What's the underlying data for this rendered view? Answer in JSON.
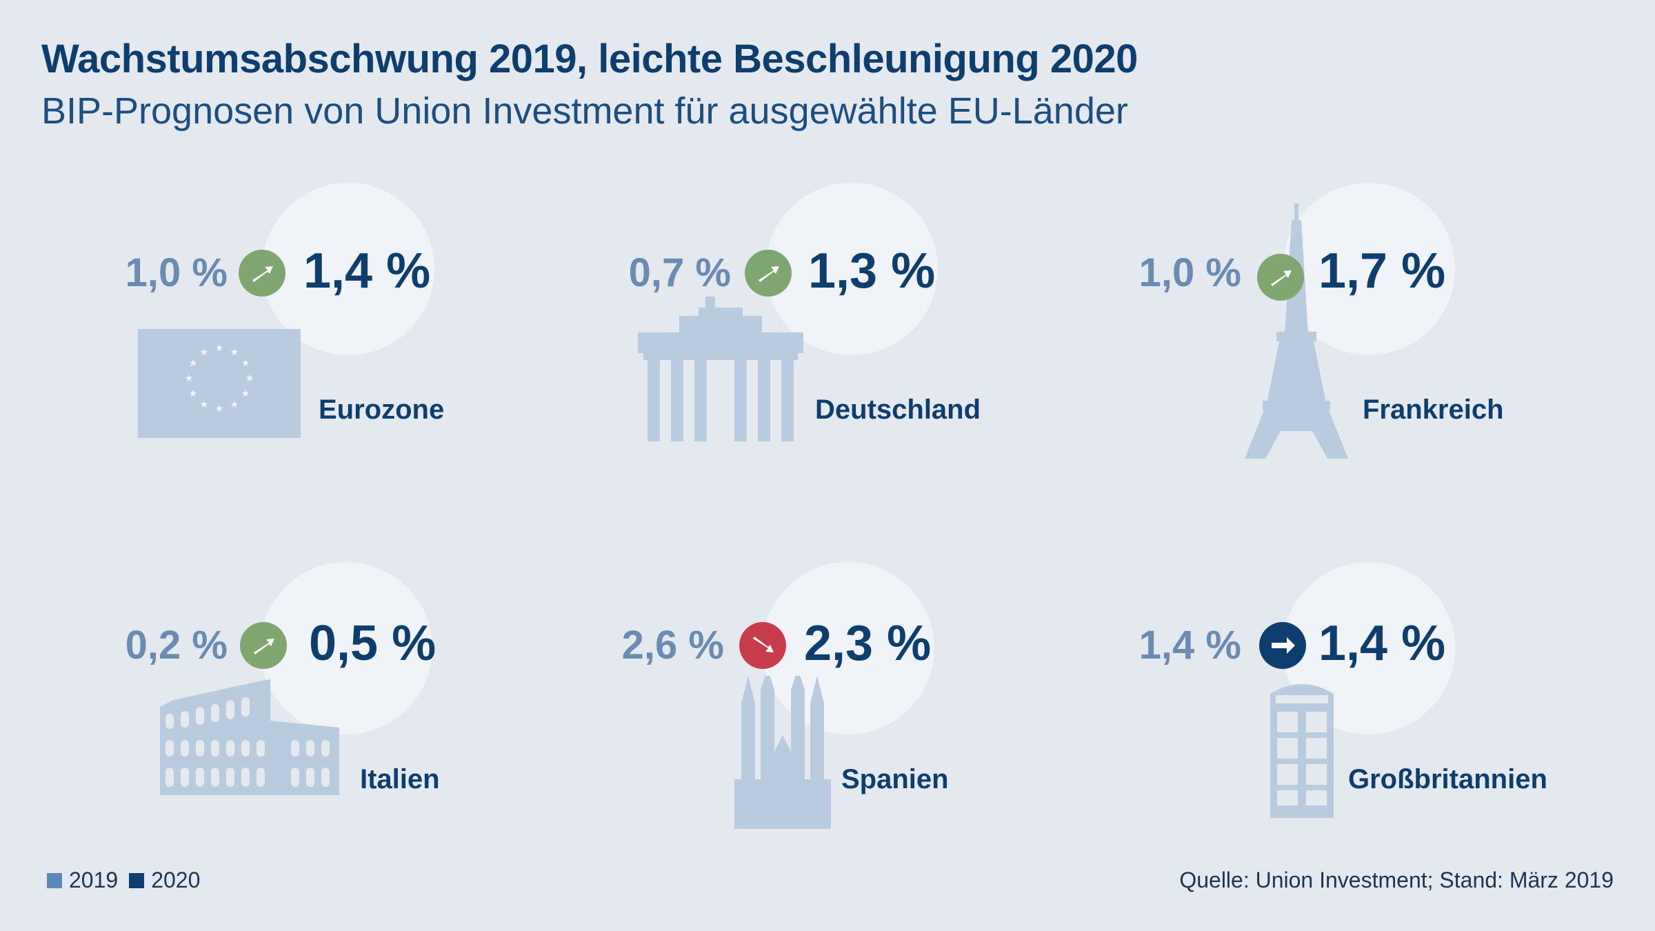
{
  "title": "Wachstumsabschwung 2019, leichte Beschleunigung 2020",
  "subtitle": "BIP-Prognosen von Union Investment für ausgewählte EU-Länder",
  "legend": {
    "label_2019": "2019",
    "label_2020": "2020",
    "color_2019": "#5b88b8",
    "color_2020": "#0d3e6e"
  },
  "source": "Quelle: Union Investment; Stand: März 2019",
  "colors": {
    "up": "#7fa66e",
    "down": "#c83c4c",
    "flat": "#0d3e6e"
  },
  "chart_data": {
    "type": "table",
    "title": "Wachstumsabschwung 2019, leichte Beschleunigung 2020",
    "subtitle": "BIP-Prognosen von Union Investment für ausgewählte EU-Länder",
    "columns": [
      "2019",
      "2020"
    ],
    "unit": "%",
    "countries": [
      {
        "name": "Eurozone",
        "v2019": 1.0,
        "v2020": 1.4,
        "label_2019": "1,0 %",
        "label_2020": "1,4 %",
        "trend": "up",
        "icon": "eu-flag-icon"
      },
      {
        "name": "Deutschland",
        "v2019": 0.7,
        "v2020": 1.3,
        "label_2019": "0,7 %",
        "label_2020": "1,3 %",
        "trend": "up",
        "icon": "brandenburg-gate-icon"
      },
      {
        "name": "Frankreich",
        "v2019": 1.0,
        "v2020": 1.7,
        "label_2019": "1,0 %",
        "label_2020": "1,7 %",
        "trend": "up",
        "icon": "eiffel-tower-icon"
      },
      {
        "name": "Italien",
        "v2019": 0.2,
        "v2020": 0.5,
        "label_2019": "0,2 %",
        "label_2020": "0,5 %",
        "trend": "up",
        "icon": "colosseum-icon"
      },
      {
        "name": "Spanien",
        "v2019": 2.6,
        "v2020": 2.3,
        "label_2019": "2,6 %",
        "label_2020": "2,3 %",
        "trend": "down",
        "icon": "sagrada-familia-icon"
      },
      {
        "name": "Großbritannien",
        "v2019": 1.4,
        "v2020": 1.4,
        "label_2019": "1,4 %",
        "label_2020": "1,4 %",
        "trend": "flat",
        "icon": "phone-booth-icon"
      }
    ]
  }
}
